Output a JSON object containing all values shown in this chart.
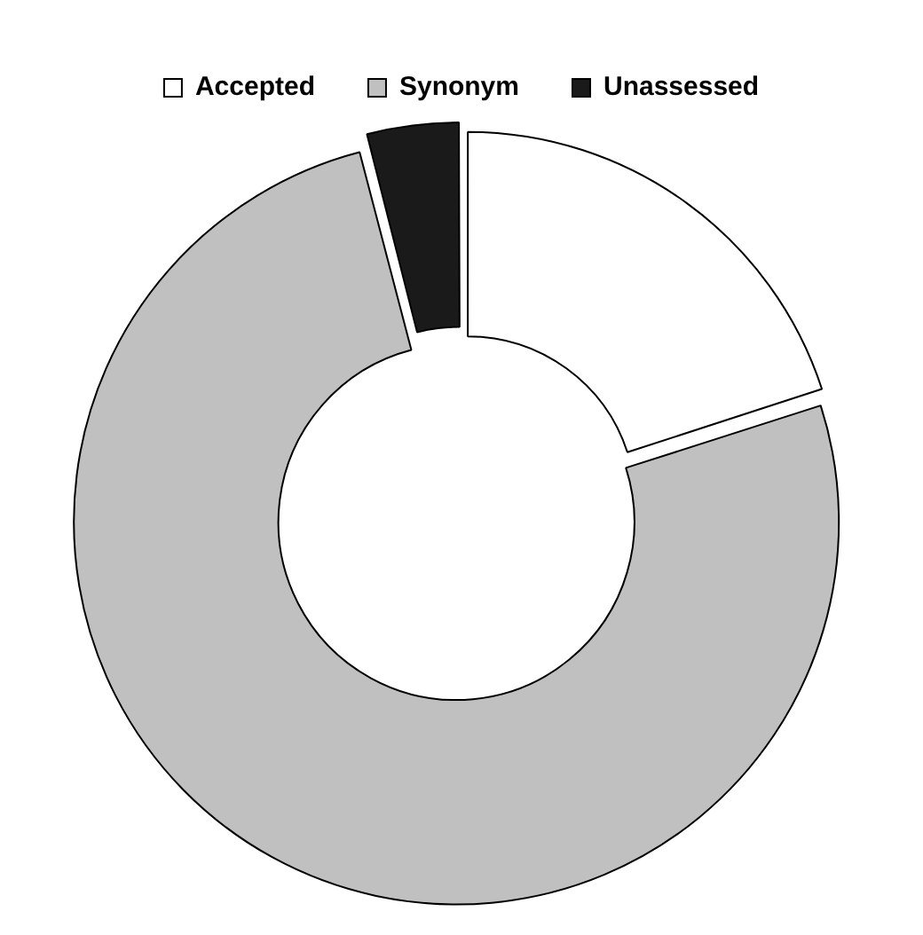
{
  "chart_data": {
    "type": "donut",
    "categories": [
      "Accepted",
      "Synonym",
      "Unassessed"
    ],
    "values": [
      20,
      76,
      4
    ],
    "colors": [
      "#ffffff",
      "#c0c0c0",
      "#1a1a1a"
    ],
    "legend": "top"
  }
}
